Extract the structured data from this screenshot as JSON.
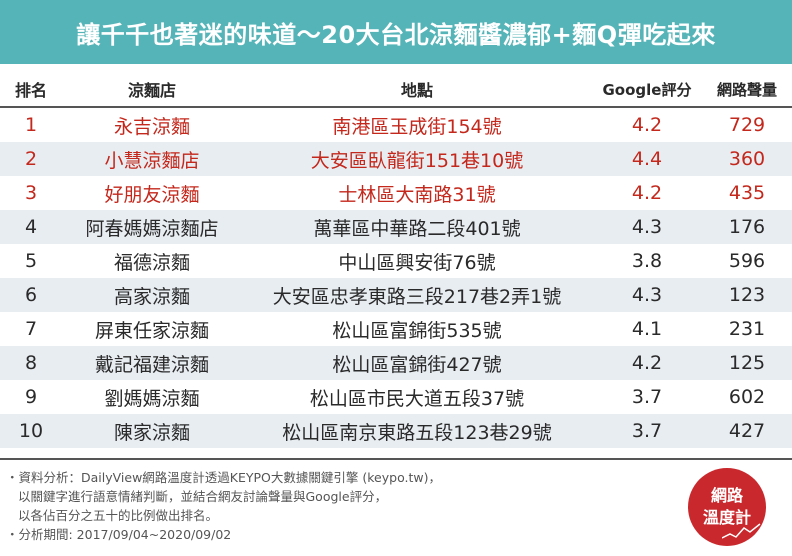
{
  "title": "讓千千也著迷的味道～20大台北涼麵醬濃郁+麵Q彈吃起來",
  "header": {
    "rank": "排名",
    "shop": "涼麵店",
    "address": "地點",
    "rating": "Google評分",
    "volume": "網路聲量"
  },
  "rows": [
    {
      "rank": "1",
      "shop": "永吉涼麵",
      "address": "南港區玉成街154號",
      "rating": "4.2",
      "volume": "729"
    },
    {
      "rank": "2",
      "shop": "小慧涼麵店",
      "address": "大安區臥龍街151巷10號",
      "rating": "4.4",
      "volume": "360"
    },
    {
      "rank": "3",
      "shop": "好朋友涼麵",
      "address": "士林區大南路31號",
      "rating": "4.2",
      "volume": "435"
    },
    {
      "rank": "4",
      "shop": "阿春媽媽涼麵店",
      "address": "萬華區中華路二段401號",
      "rating": "4.3",
      "volume": "176"
    },
    {
      "rank": "5",
      "shop": "福德涼麵",
      "address": "中山區興安街76號",
      "rating": "3.8",
      "volume": "596"
    },
    {
      "rank": "6",
      "shop": "高家涼麵",
      "address": "大安區忠孝東路三段217巷2弄1號",
      "rating": "4.3",
      "volume": "123"
    },
    {
      "rank": "7",
      "shop": "屏東任家涼麵",
      "address": "松山區富錦街535號",
      "rating": "4.1",
      "volume": "231"
    },
    {
      "rank": "8",
      "shop": "戴記福建涼麵",
      "address": "松山區富錦街427號",
      "rating": "4.2",
      "volume": "125"
    },
    {
      "rank": "9",
      "shop": "劉媽媽涼麵",
      "address": "松山區市民大道五段37號",
      "rating": "3.7",
      "volume": "602"
    },
    {
      "rank": "10",
      "shop": "陳家涼麵",
      "address": "松山區南京東路五段123巷29號",
      "rating": "3.7",
      "volume": "427"
    }
  ],
  "notes": {
    "line1": "・資料分析：DailyView網路溫度計透過KEYPO大數據關鍵引擎 (keypo.tw)，",
    "line2": "以關鍵字進行語意情緒判斷，並結合網友討論聲量與Google評分，",
    "line3": "以各佔百分之五十的比例做出排名。",
    "line4": "・分析期間: 2017/09/04~2020/09/02"
  },
  "logo": {
    "line1": "網路",
    "line2": "溫度計"
  },
  "colors": {
    "title_bg": "#55b4b8",
    "top3_text": "#c4271b",
    "alt_row": "#e8edf2",
    "logo_bg": "#c9282d"
  }
}
